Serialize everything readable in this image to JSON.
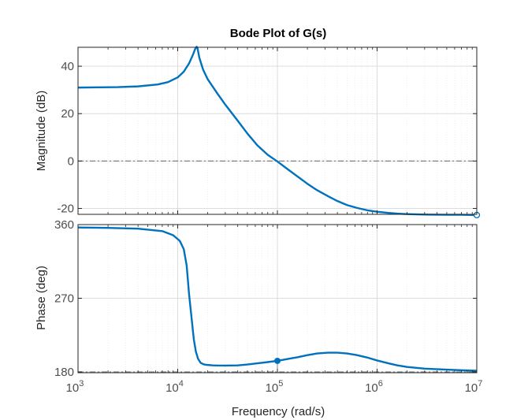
{
  "chart_data": {
    "type": "line",
    "title": "Bode Plot of G(s)",
    "xlabel": "Frequency  (rad/s)",
    "xscale": "log",
    "xlim": [
      1000,
      10000000
    ],
    "x_ticks": [
      {
        "base": "10",
        "exp": "3"
      },
      {
        "base": "10",
        "exp": "4"
      },
      {
        "base": "10",
        "exp": "5"
      },
      {
        "base": "10",
        "exp": "6"
      },
      {
        "base": "10",
        "exp": "7"
      }
    ],
    "grid": true,
    "colors": {
      "line": "#0072bd",
      "reference": "#808080",
      "grid": "#dcdcdc",
      "axes": "#262626"
    },
    "panels": [
      {
        "name": "magnitude",
        "ylabel": "Magnitude (dB)",
        "ylim": [
          -22.5,
          48
        ],
        "yticks": [
          40,
          20,
          0,
          -20
        ],
        "reference_line": 0,
        "series": [
          {
            "x": [
              1000,
              1600,
              2500,
              4000,
              6300,
              8000,
              10000,
              11500,
              13000,
              14200,
              15000,
              15500,
              15800,
              16500,
              18000,
              20000,
              25000,
              30000,
              40000,
              50000,
              63000,
              80000,
              100000,
              130000,
              160000,
              200000,
              250000,
              320000,
              400000,
              500000,
              630000,
              800000,
              1000000,
              1300000,
              1600000,
              2000000,
              3000000,
              5000000,
              7000000,
              10000000
            ],
            "y": [
              31,
              31.1,
              31.2,
              31.5,
              32.3,
              33.3,
              35.3,
              37.7,
              41.2,
              44.8,
              47.4,
              48.2,
              47.6,
              43.5,
              38.5,
              34.5,
              28.5,
              23.8,
              17.0,
              11.6,
              6.6,
              2.6,
              -0.2,
              -3.8,
              -6.6,
              -9.6,
              -12.3,
              -14.8,
              -16.9,
              -18.6,
              -19.8,
              -20.8,
              -21.4,
              -21.9,
              -22.2,
              -22.4,
              -22.6,
              -22.7,
              -22.7,
              -22.8
            ]
          }
        ],
        "markers": [
          {
            "x": 10000000,
            "y": -22.8,
            "style": "open"
          }
        ]
      },
      {
        "name": "phase",
        "ylabel": "Phase (deg)",
        "ylim": [
          179,
          360
        ],
        "yticks": [
          360,
          270,
          180
        ],
        "reference_line": 180,
        "series": [
          {
            "x": [
              1000,
              2000,
              4000,
              7000,
              9000,
              10500,
              11500,
              12300,
              13000,
              13800,
              14500,
              15200,
              16000,
              17000,
              18500,
              20000,
              22500,
              25000,
              30000,
              40000,
              50000,
              63000,
              80000,
              100000,
              130000,
              160000,
              200000,
              250000,
              320000,
              400000,
              500000,
              630000,
              800000,
              1000000,
              1300000,
              1600000,
              2000000,
              3000000,
              5000000,
              7000000,
              10000000
            ],
            "y": [
              356.5,
              356,
              355,
              352,
              347,
              340,
              330,
              310,
              275,
              245,
              220,
              205,
              196,
              191,
              189,
              188.5,
              188,
              187.8,
              187.7,
              188,
              189,
              190.5,
              192,
              193.5,
              196,
              198,
              200.5,
              202.5,
              203.5,
              203.5,
              202.5,
              200.5,
              197.5,
              194,
              190.5,
              188,
              186,
              184,
              182.8,
              182,
              181.5
            ]
          }
        ],
        "markers": [
          {
            "x": 100000,
            "y": 193.5,
            "style": "filled"
          }
        ]
      }
    ]
  }
}
